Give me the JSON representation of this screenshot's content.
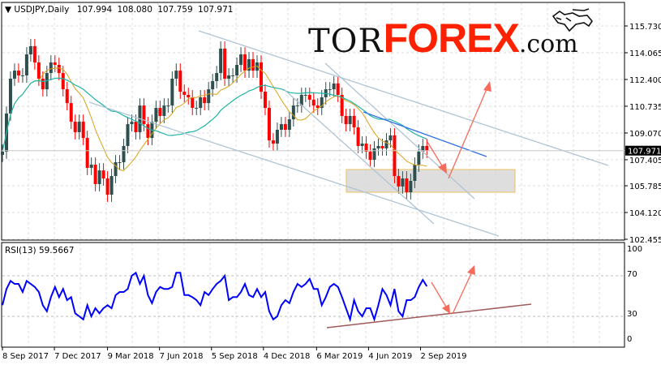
{
  "colors": {
    "bull_candle": "#2f4f4f",
    "bear_candle": "#ff0000",
    "ma_fast": "#d9a21a",
    "ma_slow": "#1fb5a5",
    "trendline": "#b0c4d4",
    "blue_line": "#2f6fe8",
    "arrow": "#f86a5a",
    "rsi_line": "#0000ff",
    "rsi_support": "#a05a5a",
    "zone_fill": "#d8d8d8",
    "zone_border": "#e8c060"
  },
  "logo": {
    "text_1": "TOR",
    "text_2": "FOREX",
    "text_3": ".com",
    "icon": "bull-icon"
  },
  "chart_data": [
    {
      "type": "candlestick",
      "title": {
        "symbol": "USDJPY,Daily",
        "open": "107.994",
        "high": "108.080",
        "low": "107.759",
        "close": "107.971"
      },
      "current_price_label": "107.971",
      "current_price": 107.971,
      "ylim": [
        102.455,
        115.73
      ],
      "y_ticks": [
        "115.730",
        "114.065",
        "112.400",
        "110.735",
        "109.070",
        "107.405",
        "105.785",
        "104.120",
        "102.455"
      ],
      "x_ticks": [
        {
          "label": "8 Sep 2017",
          "date": "2017-09-08"
        },
        {
          "label": "7 Dec 2017",
          "date": "2017-12-07"
        },
        {
          "label": "9 Mar 2018",
          "date": "2018-03-09"
        },
        {
          "label": "7 Jun 2018",
          "date": "2018-06-07"
        },
        {
          "label": "5 Sep 2018",
          "date": "2018-09-05"
        },
        {
          "label": "4 Dec 2018",
          "date": "2018-12-04"
        },
        {
          "label": "6 Mar 2019",
          "date": "2019-03-06"
        },
        {
          "label": "4 Jun 2019",
          "date": "2019-06-04"
        },
        {
          "label": "2 Sep 2019",
          "date": "2019-09-02"
        }
      ],
      "grid": true,
      "dates": [
        "2017-09-08",
        "2017-09-15",
        "2017-09-22",
        "2017-09-29",
        "2017-10-06",
        "2017-10-13",
        "2017-10-20",
        "2017-10-27",
        "2017-11-03",
        "2017-11-10",
        "2017-11-17",
        "2017-11-24",
        "2017-12-01",
        "2017-12-08",
        "2017-12-15",
        "2017-12-22",
        "2017-12-29",
        "2018-01-05",
        "2018-01-12",
        "2018-01-19",
        "2018-01-26",
        "2018-02-02",
        "2018-02-09",
        "2018-02-16",
        "2018-02-23",
        "2018-03-02",
        "2018-03-09",
        "2018-03-16",
        "2018-03-23",
        "2018-03-30",
        "2018-04-06",
        "2018-04-13",
        "2018-04-20",
        "2018-04-27",
        "2018-05-04",
        "2018-05-11",
        "2018-05-18",
        "2018-05-25",
        "2018-06-01",
        "2018-06-08",
        "2018-06-15",
        "2018-06-22",
        "2018-06-29",
        "2018-07-06",
        "2018-07-13",
        "2018-07-20",
        "2018-07-27",
        "2018-08-03",
        "2018-08-10",
        "2018-08-17",
        "2018-08-24",
        "2018-08-31",
        "2018-09-07",
        "2018-09-14",
        "2018-09-21",
        "2018-09-28",
        "2018-10-05",
        "2018-10-12",
        "2018-10-19",
        "2018-10-26",
        "2018-11-02",
        "2018-11-09",
        "2018-11-16",
        "2018-11-23",
        "2018-11-30",
        "2018-12-07",
        "2018-12-14",
        "2018-12-21",
        "2018-12-28",
        "2019-01-04",
        "2019-01-11",
        "2019-01-18",
        "2019-01-25",
        "2019-02-01",
        "2019-02-08",
        "2019-02-15",
        "2019-02-22",
        "2019-03-01",
        "2019-03-08",
        "2019-03-15",
        "2019-03-22",
        "2019-03-29",
        "2019-04-05",
        "2019-04-12",
        "2019-04-19",
        "2019-04-26",
        "2019-05-03",
        "2019-05-10",
        "2019-05-17",
        "2019-05-24",
        "2019-05-31",
        "2019-06-07",
        "2019-06-14",
        "2019-06-21",
        "2019-06-28",
        "2019-07-05",
        "2019-07-12",
        "2019-07-19",
        "2019-07-26",
        "2019-08-02",
        "2019-08-09",
        "2019-08-16",
        "2019-08-23",
        "2019-08-30",
        "2019-09-06",
        "2019-09-13"
      ],
      "close": [
        107.91,
        110.28,
        112.45,
        112.95,
        112.65,
        112.65,
        113.96,
        114.47,
        113.46,
        112.45,
        111.79,
        112.8,
        113.46,
        113.31,
        112.8,
        111.79,
        110.93,
        109.77,
        109.12,
        109.77,
        108.76,
        106.9,
        107.1,
        105.89,
        106.74,
        106.24,
        105.23,
        106.39,
        107.25,
        107.25,
        108.26,
        109.62,
        109.77,
        109.12,
        110.78,
        109.62,
        108.76,
        109.77,
        110.63,
        110.13,
        110.78,
        110.78,
        112.45,
        112.95,
        111.64,
        111.44,
        111.29,
        110.63,
        110.63,
        111.29,
        110.93,
        111.79,
        112.3,
        112.8,
        114.32,
        112.45,
        112.65,
        112.65,
        113.31,
        113.96,
        112.95,
        113.66,
        112.95,
        113.46,
        111.64,
        110.63,
        108.61,
        108.41,
        109.27,
        109.62,
        109.27,
        109.92,
        110.78,
        110.78,
        111.44,
        111.44,
        111.14,
        110.78,
        110.63,
        111.29,
        111.79,
        111.79,
        112.15,
        111.44,
        110.13,
        109.62,
        110.13,
        109.42,
        108.26,
        108.41,
        107.91,
        107.4,
        108.11,
        108.26,
        108.11,
        108.61,
        108.92,
        106.39,
        105.74,
        106.24,
        105.38,
        106.09,
        107.1,
        107.91,
        108.26,
        107.97
      ],
      "overlays": [
        "moving-average-fast",
        "moving-average-slow",
        "descending-channel",
        "support-zone",
        "forecast-arrows"
      ]
    },
    {
      "type": "line",
      "title": "RSI(13) 59.5667",
      "ylim": [
        0,
        100
      ],
      "y_ticks": [
        "100",
        "70",
        "30",
        "0"
      ],
      "levels": [
        70,
        30
      ],
      "values": [
        41,
        57,
        65,
        62,
        62,
        54,
        65,
        62,
        59,
        54,
        41,
        35,
        49,
        59,
        49,
        57,
        46,
        49,
        33,
        30,
        27,
        41,
        30,
        38,
        33,
        38,
        41,
        38,
        51,
        54,
        54,
        57,
        70,
        73,
        62,
        70,
        51,
        43,
        54,
        59,
        57,
        57,
        59,
        73,
        73,
        51,
        51,
        49,
        46,
        41,
        54,
        51,
        57,
        62,
        65,
        70,
        46,
        49,
        49,
        54,
        62,
        51,
        49,
        57,
        49,
        54,
        35,
        27,
        30,
        41,
        46,
        43,
        54,
        62,
        59,
        62,
        67,
        57,
        57,
        41,
        49,
        59,
        62,
        59,
        49,
        38,
        27,
        46,
        35,
        30,
        38,
        38,
        27,
        41,
        57,
        51,
        41,
        57,
        35,
        30,
        46,
        46,
        49,
        59,
        66,
        59.57
      ]
    }
  ]
}
